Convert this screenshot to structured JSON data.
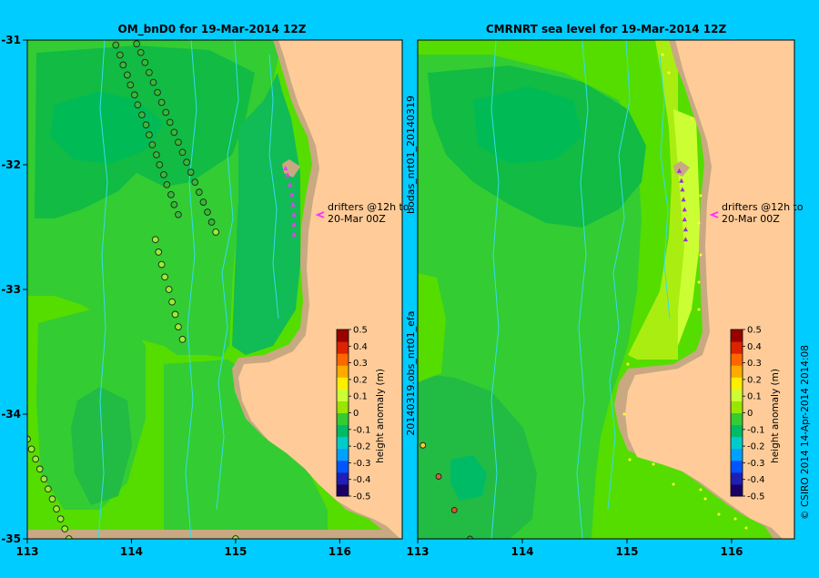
{
  "colors": {
    "background": "#00ccff",
    "land": "#ffcc99",
    "shelf": "#c8a982",
    "contour": "#33ddee",
    "drifter_left": "#ff33ff",
    "drifter_right": "#9933cc",
    "track_fill": "#ccff66",
    "obs_dot": "#ffff33",
    "colorbar": [
      "#1a0066",
      "#1f1fb8",
      "#0055ff",
      "#00a0ff",
      "#00cccc",
      "#00bb66",
      "#33cc33",
      "#99e600",
      "#ccff33",
      "#ffee00",
      "#ffaa00",
      "#ff6600",
      "#dd2200",
      "#990000"
    ]
  },
  "footer": {
    "left_rotated": "20140319.obs_nrt01_efa",
    "mid_rotated": "bodas_nrt01_20140319",
    "credit": "© CSIRO 2014   14-Apr-2014 2014:08"
  },
  "chart_data": [
    {
      "type": "heatmap",
      "title": "OM_bnD0 for 19-Mar-2014 12Z",
      "xlim": [
        113,
        116.6
      ],
      "ylim": [
        -35,
        -31
      ],
      "x_ticks": [
        113,
        114,
        115,
        116
      ],
      "x_tick_labels": [
        "113",
        "114",
        "115",
        "116"
      ],
      "y_ticks": [
        -31,
        -32,
        -33,
        -34,
        -35
      ],
      "y_tick_labels": [
        "-31",
        "-32",
        "-33",
        "-34",
        "-35"
      ],
      "annotation": [
        "drifters @12h to",
        "20-Mar 00Z"
      ],
      "colorbar": {
        "label": "height anomaly (m)",
        "min": -0.5,
        "max": 0.5,
        "ticks": [
          "0.5",
          "0.4",
          "0.3",
          "0.2",
          "0.1",
          "0",
          "-0.1",
          "-0.2",
          "-0.3",
          "-0.4",
          "-0.5"
        ]
      },
      "along_track_points": [
        [
          113.85,
          -31.04
        ],
        [
          113.89,
          -31.12
        ],
        [
          113.92,
          -31.2
        ],
        [
          113.96,
          -31.28
        ],
        [
          113.99,
          -31.36
        ],
        [
          114.03,
          -31.44
        ],
        [
          114.06,
          -31.52
        ],
        [
          114.1,
          -31.6
        ],
        [
          114.14,
          -31.68
        ],
        [
          114.17,
          -31.76
        ],
        [
          114.2,
          -31.84
        ],
        [
          114.24,
          -31.92
        ],
        [
          114.27,
          -32.0
        ],
        [
          114.31,
          -32.08
        ],
        [
          114.34,
          -32.16
        ],
        [
          114.38,
          -32.24
        ],
        [
          114.41,
          -32.32
        ],
        [
          114.45,
          -32.4
        ],
        [
          114.05,
          -31.03
        ],
        [
          114.09,
          -31.1
        ],
        [
          114.13,
          -31.18
        ],
        [
          114.17,
          -31.26
        ],
        [
          114.21,
          -31.34
        ],
        [
          114.25,
          -31.42
        ],
        [
          114.29,
          -31.5
        ],
        [
          114.33,
          -31.58
        ],
        [
          114.37,
          -31.66
        ],
        [
          114.41,
          -31.74
        ],
        [
          114.45,
          -31.82
        ],
        [
          114.49,
          -31.9
        ],
        [
          114.53,
          -31.98
        ],
        [
          114.57,
          -32.06
        ],
        [
          114.61,
          -32.14
        ],
        [
          114.65,
          -32.22
        ],
        [
          114.69,
          -32.3
        ],
        [
          114.73,
          -32.38
        ],
        [
          114.77,
          -32.46
        ],
        [
          114.81,
          -32.54
        ],
        [
          114.23,
          -32.6
        ],
        [
          114.26,
          -32.7
        ],
        [
          114.29,
          -32.8
        ],
        [
          114.32,
          -32.9
        ],
        [
          114.36,
          -33.0
        ],
        [
          114.39,
          -33.1
        ],
        [
          114.42,
          -33.2
        ],
        [
          114.45,
          -33.3
        ],
        [
          114.49,
          -33.4
        ],
        [
          113.0,
          -34.2
        ],
        [
          113.04,
          -34.28
        ],
        [
          113.08,
          -34.36
        ],
        [
          113.12,
          -34.44
        ],
        [
          113.16,
          -34.52
        ],
        [
          113.2,
          -34.6
        ],
        [
          113.24,
          -34.68
        ],
        [
          113.28,
          -34.76
        ],
        [
          113.32,
          -34.84
        ],
        [
          113.36,
          -34.92
        ],
        [
          113.4,
          -35.0
        ],
        [
          115.0,
          -35.0
        ]
      ],
      "drifters": [
        [
          115.48,
          -32.03
        ],
        [
          115.5,
          -32.08
        ],
        [
          115.52,
          -32.16
        ],
        [
          115.54,
          -32.24
        ],
        [
          115.55,
          -32.32
        ],
        [
          115.56,
          -32.4
        ],
        [
          115.56,
          -32.48
        ],
        [
          115.56,
          -32.56
        ]
      ]
    },
    {
      "type": "heatmap",
      "title": "CMRNRT sea level  for 19-Mar-2014 12Z",
      "xlim": [
        113,
        116.6
      ],
      "ylim": [
        -35,
        -31
      ],
      "x_ticks": [
        113,
        114,
        115,
        116
      ],
      "x_tick_labels": [
        "113",
        "114",
        "115",
        "116"
      ],
      "annotation": [
        "drifters @12h to",
        "20-Mar 00Z"
      ],
      "colorbar": {
        "label": "height anomaly (m)",
        "min": -0.5,
        "max": 0.5,
        "ticks": [
          "0.5",
          "0.4",
          "0.3",
          "0.2",
          "0.1",
          "0",
          "-0.1",
          "-0.2",
          "-0.3",
          "-0.4",
          "-0.5"
        ]
      },
      "along_track_points": [
        [
          113.05,
          -34.25
        ],
        [
          113.2,
          -34.5
        ],
        [
          113.35,
          -34.77
        ],
        [
          113.5,
          -35.0
        ]
      ],
      "drifters": [
        [
          115.5,
          -32.05
        ],
        [
          115.52,
          -32.13
        ],
        [
          115.53,
          -32.2
        ],
        [
          115.54,
          -32.28
        ],
        [
          115.55,
          -32.36
        ],
        [
          115.55,
          -32.44
        ],
        [
          115.56,
          -32.52
        ],
        [
          115.56,
          -32.6
        ]
      ]
    }
  ]
}
